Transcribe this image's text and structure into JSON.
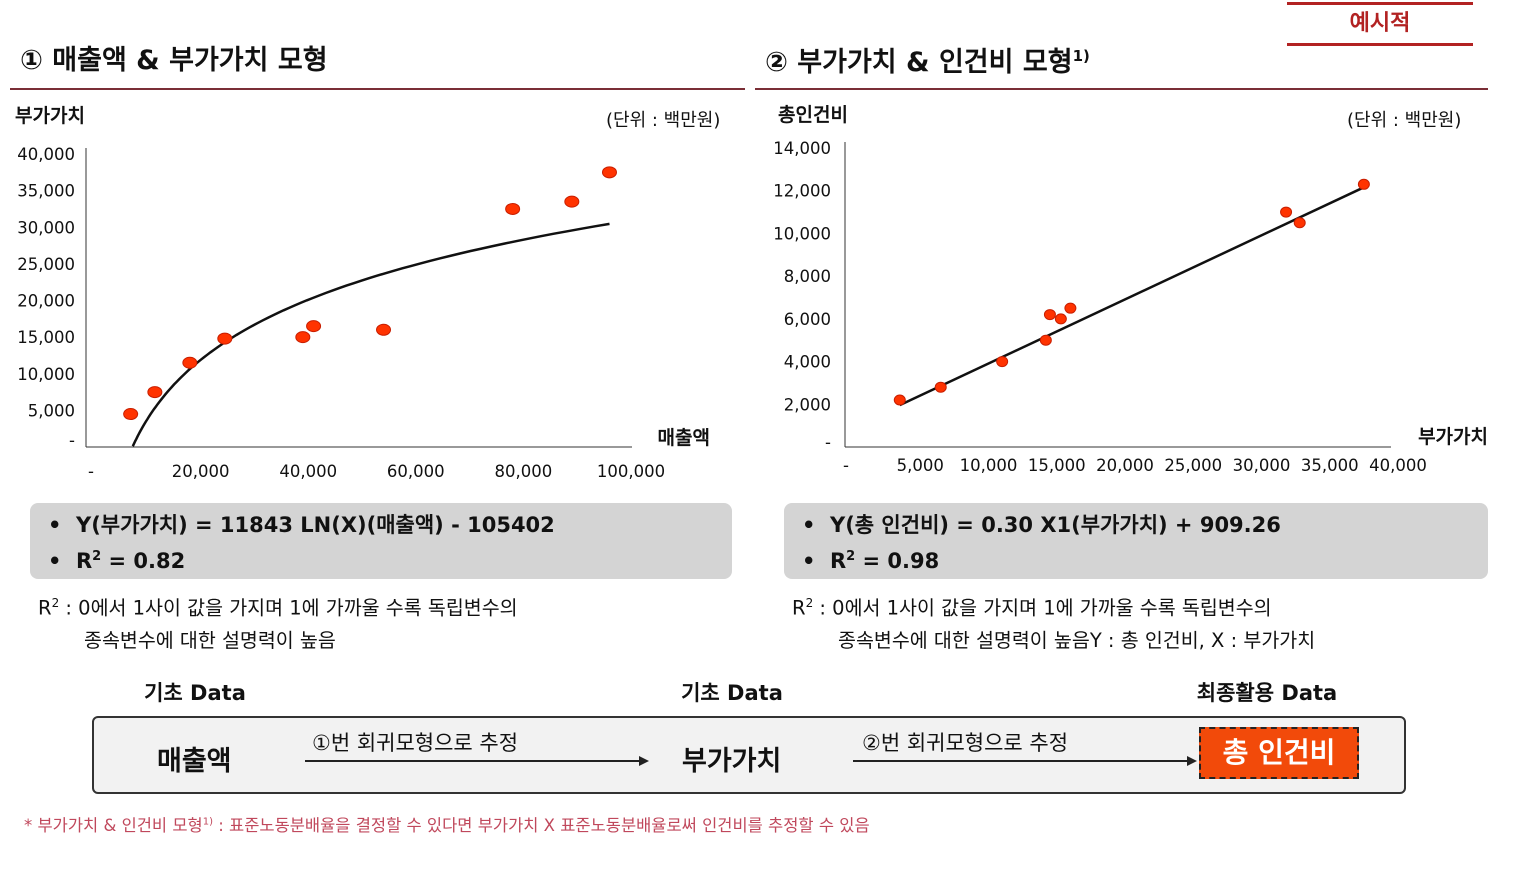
{
  "badge": "예시적",
  "left": {
    "title": "① 매출액 & 부가가치 모형",
    "y_axis_title": "부가가치",
    "unit": "(단위 : 백만원)",
    "x_axis_title": "매출액",
    "equation": "Y(부가가치)  =  11843  LN(X)(매출액)  -  105402",
    "r2_prefix": "R",
    "r2_sup": "2",
    "r2_value": " =  0.82",
    "note_r": "R",
    "note_sup": "2",
    "note_line1": " : 0에서 1사이 값을 가지며 1에 가까울 수록 독립변수의",
    "note_line2": "종속변수에 대한 설명력이 높음"
  },
  "right": {
    "title": "② 부가가치 & 인건비 모형",
    "title_sup": "1)",
    "y_axis_title": "총인건비",
    "unit": "(단위 : 백만원)",
    "x_axis_title": "부가가치",
    "equation": "Y(총 인건비)  =  0.30  X1(부가가치)  +    909.26",
    "r2_prefix": "R",
    "r2_sup": "2",
    "r2_value": " =  0.98",
    "note_r": "R",
    "note_sup": "2",
    "note_line1": " : 0에서 1사이 값을 가지며 1에 가까울 수록 독립변수의",
    "note_line2": "종속변수에 대한 설명력이 높음Y : 총 인건비,   X : 부가가치"
  },
  "flow": {
    "label1": "기초 Data",
    "label2": "기초 Data",
    "label3": "최종활용 Data",
    "node1": "매출액",
    "step1": "①번 회귀모형으로 추정",
    "node2": "부가가치",
    "step2": "②번 회귀모형으로 추정",
    "node3": "총 인건비"
  },
  "footnote": {
    "prefix": "* 부가가치 & 인건비 모형",
    "sup": "1)",
    "text": " : 표준노동분배율을 결정할 수 있다면 부가가치 X 표준노동분배율로써 인건비를 추정할 수 있음"
  },
  "colors": {
    "accent": "#b22222",
    "rule": "#7a2e36",
    "point": "#ff3300",
    "final_box": "#f24a0a"
  },
  "chart_data": [
    {
      "type": "scatter",
      "x": [
        7000,
        11500,
        18000,
        24500,
        39000,
        41000,
        54000,
        78000,
        89000,
        96000
      ],
      "y": [
        4500,
        7500,
        11500,
        14800,
        15000,
        16500,
        16000,
        32500,
        33500,
        37500
      ],
      "fit": {
        "kind": "log",
        "a": 11843,
        "b": -105402,
        "x_range": [
          7400,
          96000
        ]
      },
      "xticks": [
        0,
        20000,
        40000,
        60000,
        80000,
        100000
      ],
      "xtick_labels": [
        "-",
        "20,000",
        "40,000",
        "60,000",
        "80,000",
        "100,000"
      ],
      "yticks": [
        0,
        5000,
        10000,
        15000,
        20000,
        25000,
        30000,
        35000,
        40000
      ],
      "ytick_labels": [
        "-",
        "5,000",
        "10,000",
        "15,000",
        "20,000",
        "25,000",
        "30,000",
        "35,000",
        "40,000"
      ],
      "xlim": [
        0,
        100000
      ],
      "ylim": [
        0,
        40000
      ],
      "xlabel": "매출액",
      "ylabel": "부가가치",
      "grid": false
    },
    {
      "type": "scatter",
      "x": [
        3500,
        6500,
        11000,
        14200,
        14500,
        15300,
        16000,
        31800,
        32800,
        37500
      ],
      "y": [
        2200,
        2800,
        4000,
        5000,
        6200,
        6000,
        6500,
        11000,
        10500,
        12300
      ],
      "fit": {
        "kind": "linear",
        "slope": 0.3,
        "intercept": 909.26,
        "x_range": [
          3500,
          37500
        ]
      },
      "xticks": [
        0,
        5000,
        10000,
        15000,
        20000,
        25000,
        30000,
        35000,
        40000
      ],
      "xtick_labels": [
        "-",
        "5,000",
        "10,000",
        "15,000",
        "20,000",
        "25,000",
        "30,000",
        "35,000",
        "40,000"
      ],
      "yticks": [
        0,
        2000,
        4000,
        6000,
        8000,
        10000,
        12000,
        14000
      ],
      "ytick_labels": [
        "-",
        "2,000",
        "4,000",
        "6,000",
        "8,000",
        "10,000",
        "12,000",
        "14,000"
      ],
      "xlim": [
        0,
        40000
      ],
      "ylim": [
        0,
        14000
      ],
      "xlabel": "부가가치",
      "ylabel": "총인건비",
      "grid": false
    }
  ]
}
